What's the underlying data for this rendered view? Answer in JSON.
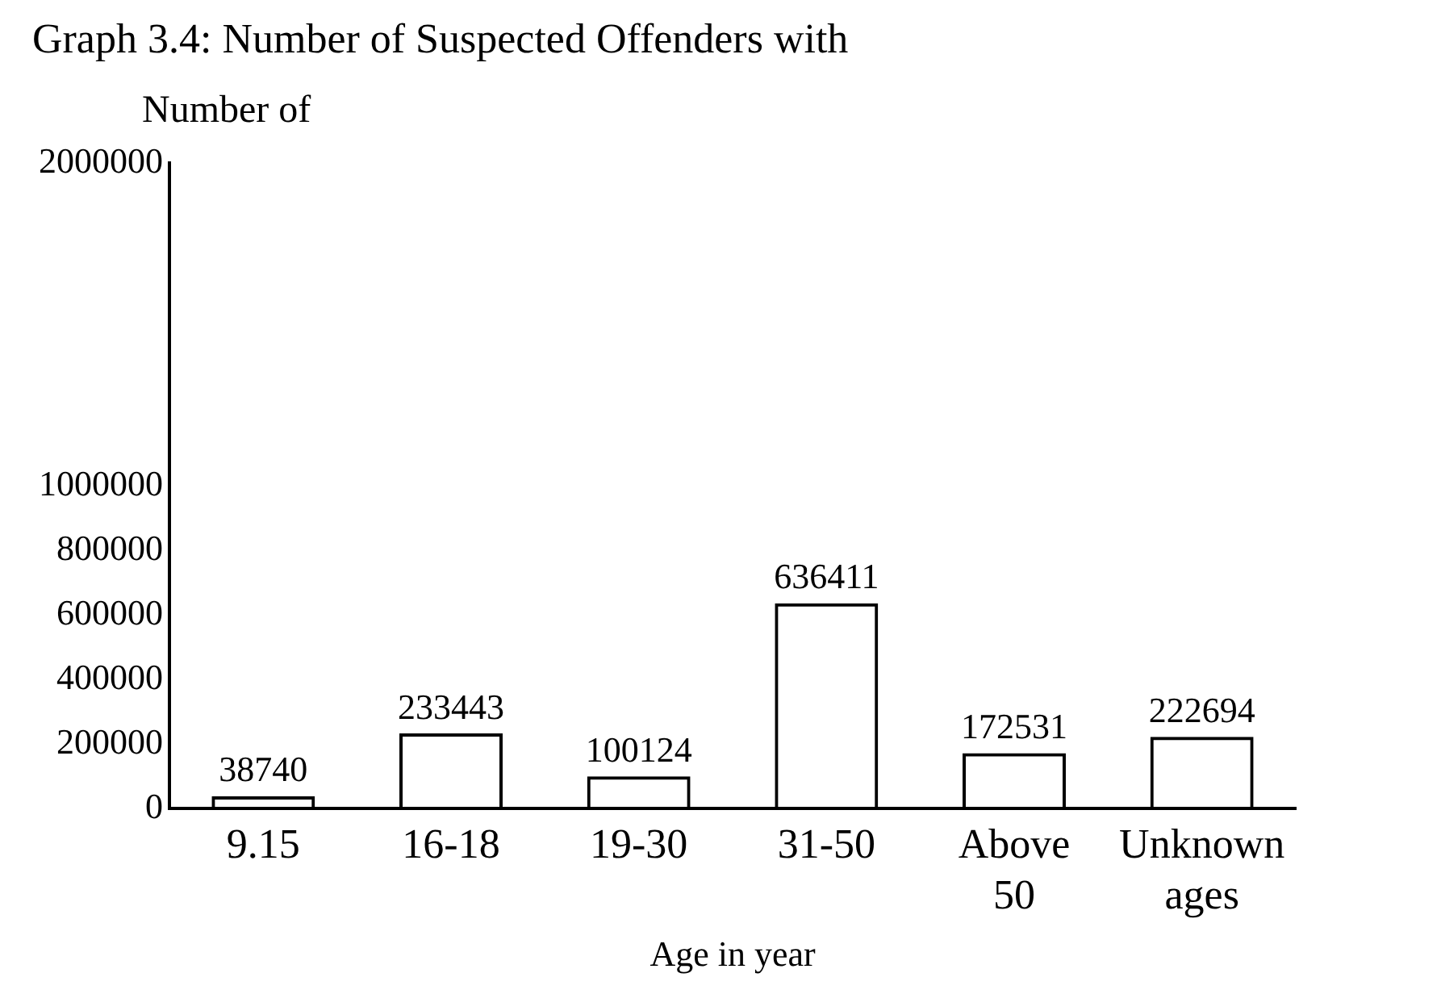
{
  "chart_data": {
    "type": "bar",
    "title": "Graph 3.4: Number of Suspected Offenders with",
    "ylabel": "Number of",
    "xlabel": "Age in year",
    "categories": [
      "9.15",
      "16-18",
      "19-30",
      "31-50",
      "Above 50",
      "Unknown ages"
    ],
    "values": [
      38740,
      233443,
      100124,
      636411,
      172531,
      222694
    ],
    "color": "#000000",
    "ylim": [
      0,
      2000000
    ],
    "yticks": [
      0,
      200000,
      400000,
      600000,
      800000,
      1000000,
      2000000
    ],
    "data_labels": true,
    "grid": false,
    "legend": false
  }
}
